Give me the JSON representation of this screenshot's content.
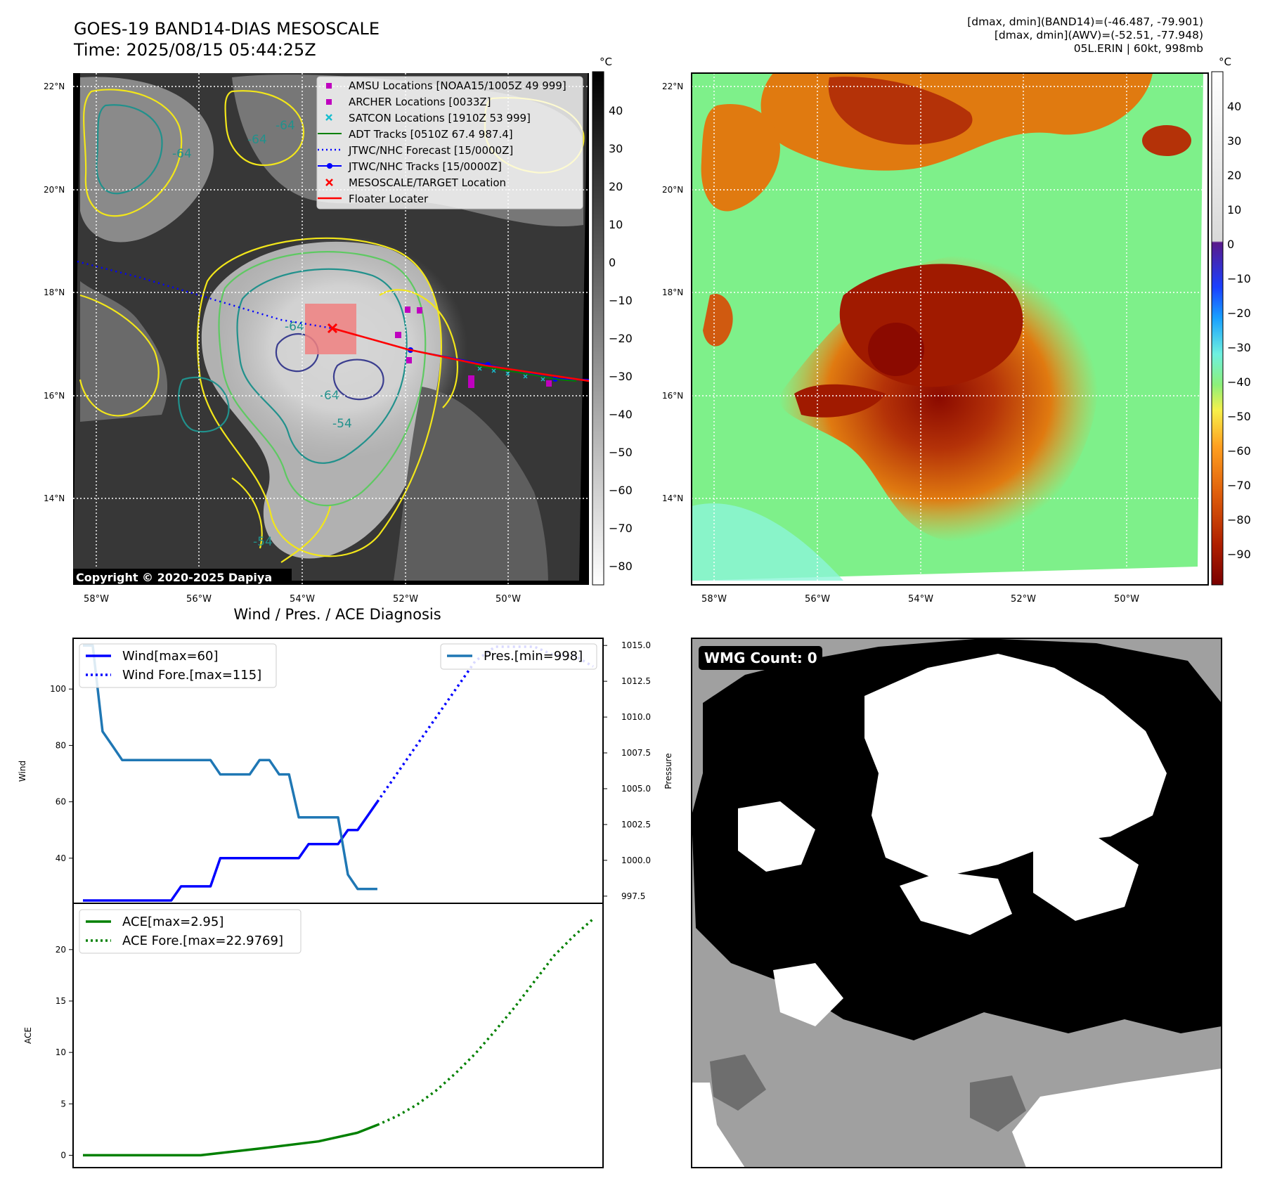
{
  "header": {
    "title_line1": "GOES-19 BAND14-DIAS MESOSCALE",
    "title_line2": "Time: 2025/08/15 05:44:25Z",
    "info_line1": "[dmax, dmin](BAND14)=(-46.487, -79.901)",
    "info_line2": "[dmax, dmin](AWV)=(-52.51, -77.948)",
    "info_line3": "05L.ERIN | 60kt, 998mb"
  },
  "map_axes": {
    "lon_ticks": [
      "58°W",
      "56°W",
      "54°W",
      "52°W",
      "50°W"
    ],
    "lat_ticks": [
      "22°N",
      "20°N",
      "18°N",
      "16°N",
      "14°N"
    ]
  },
  "ir_panel": {
    "copyright": "Copyright © 2020-2025 Dapiya",
    "colorbar_unit": "°C",
    "colorbar_ticks": [
      "40",
      "30",
      "20",
      "10",
      "0",
      "−10",
      "−20",
      "−30",
      "−40",
      "−50",
      "−60",
      "−70",
      "−80"
    ],
    "contour_labels": [
      "-64",
      "-64",
      "-54",
      "-64",
      "-64",
      "-64",
      "-54"
    ],
    "colors": {
      "ir_dark": "#303030",
      "contour_yellow": "#f2e61a",
      "contour_green": "#5ec962",
      "contour_teal": "#21918c",
      "contour_navy": "#3b3e8f"
    },
    "legend": [
      {
        "label": "AMSU Locations [NOAA15/1005Z 49 999]",
        "marker": "square",
        "color": "#bf00bf"
      },
      {
        "label": "ARCHER Locations [0033Z]",
        "marker": "square",
        "color": "#bf00bf"
      },
      {
        "label": "SATCON Locations [1910Z 53 999]",
        "marker": "x",
        "color": "#17becf"
      },
      {
        "label": "ADT Tracks [0510Z 67.4 987.4]",
        "marker": "line",
        "color": "#008000"
      },
      {
        "label": "JTWC/NHC Forecast [15/0000Z]",
        "marker": "dotted",
        "color": "#0000ff"
      },
      {
        "label": "JTWC/NHC Tracks [15/0000Z]",
        "marker": "line-dot",
        "color": "#0000ff"
      },
      {
        "label": "MESOSCALE/TARGET Location",
        "marker": "x",
        "color": "#ff0000"
      },
      {
        "label": "Floater Locater",
        "marker": "line",
        "color": "#ff0000"
      }
    ]
  },
  "wv_panel": {
    "colorbar_unit": "°C",
    "colorbar_ticks": [
      "40",
      "30",
      "20",
      "10",
      "0",
      "−10",
      "−20",
      "−30",
      "−40",
      "−50",
      "−60",
      "−70",
      "−80",
      "−90"
    ],
    "colors": {
      "background_green": "#7ef08a",
      "cloud_orange": "#e07a10",
      "cloud_dark": "#8b0a00"
    }
  },
  "wmg_panel": {
    "label": "WMG Count: 0",
    "colors": {
      "black": "#000000",
      "white": "#ffffff",
      "light_gray": "#a0a0a0",
      "dark_gray": "#6e6e6e"
    }
  },
  "chart_data": [
    {
      "type": "line",
      "title": "Wind / Pres. / ACE Diagnosis",
      "ylabel": "Wind",
      "ylabel_right": "Pressure",
      "ylim": [
        24,
        118
      ],
      "ylim_right": [
        997.0,
        1015.5
      ],
      "xlim": [
        -1,
        53
      ],
      "yticks": [
        40,
        60,
        80,
        100
      ],
      "yticks_right": [
        "997.5",
        "1000.0",
        "1002.5",
        "1005.0",
        "1007.5",
        "1010.0",
        "1012.5",
        "1015.0"
      ],
      "legend_left": [
        "Wind[max=60]",
        "Wind Fore.[max=115]"
      ],
      "legend_right": [
        "Pres.[min=998]"
      ],
      "series": [
        {
          "name": "Wind[max=60]",
          "axis": "left",
          "style": "solid",
          "color": "#0000ff",
          "x": [
            0,
            1,
            2,
            3,
            4,
            5,
            6,
            7,
            8,
            9,
            10,
            11,
            12,
            13,
            14,
            15,
            16,
            17,
            18,
            19,
            20,
            21,
            22,
            23,
            24,
            25,
            26,
            27,
            28,
            29,
            30
          ],
          "values": [
            25,
            25,
            25,
            25,
            25,
            25,
            25,
            25,
            25,
            25,
            30,
            30,
            30,
            30,
            40,
            40,
            40,
            40,
            40,
            40,
            40,
            40,
            40,
            45,
            45,
            45,
            45,
            50,
            50,
            55,
            60
          ]
        },
        {
          "name": "Wind Fore.[max=115]",
          "axis": "left",
          "style": "dotted",
          "color": "#0000ff",
          "x": [
            30,
            32,
            34,
            36,
            38,
            40,
            42,
            44,
            46,
            48,
            50,
            52
          ],
          "values": [
            60,
            70,
            80,
            90,
            100,
            110,
            115,
            115,
            115,
            112,
            112,
            108
          ]
        },
        {
          "name": "Pres.[min=998]",
          "axis": "right",
          "style": "solid",
          "color": "#1f77b4",
          "x": [
            0,
            1,
            2,
            3,
            4,
            5,
            6,
            7,
            8,
            9,
            10,
            11,
            12,
            13,
            14,
            15,
            16,
            17,
            18,
            19,
            20,
            21,
            22,
            23,
            24,
            25,
            26,
            27,
            28,
            29,
            30
          ],
          "values": [
            1015,
            1015,
            1009,
            1008,
            1007,
            1007,
            1007,
            1007,
            1007,
            1007,
            1007,
            1007,
            1007,
            1007,
            1006,
            1006,
            1006,
            1006,
            1007,
            1007,
            1006,
            1006,
            1003,
            1003,
            1003,
            1003,
            1003,
            999,
            998,
            998,
            998
          ]
        }
      ]
    },
    {
      "type": "line",
      "ylabel": "ACE",
      "ylim": [
        -1.2,
        24.5
      ],
      "xlim": [
        -1,
        53
      ],
      "yticks": [
        0,
        5,
        10,
        15,
        20
      ],
      "legend": [
        "ACE[max=2.95]",
        "ACE Fore.[max=22.9769]"
      ],
      "series": [
        {
          "name": "ACE[max=2.95]",
          "style": "solid",
          "color": "#008000",
          "x": [
            0,
            6,
            12,
            18,
            24,
            28,
            30
          ],
          "values": [
            0,
            0,
            0,
            0.65,
            1.35,
            2.2,
            2.95
          ]
        },
        {
          "name": "ACE Fore.[max=22.9769]",
          "style": "dotted",
          "color": "#008000",
          "x": [
            30,
            32,
            34,
            36,
            38,
            40,
            42,
            44,
            46,
            48,
            50,
            52
          ],
          "values": [
            2.95,
            3.8,
            4.9,
            6.3,
            8.0,
            9.9,
            12.1,
            14.4,
            16.9,
            19.4,
            21.3,
            22.98
          ]
        }
      ]
    }
  ]
}
